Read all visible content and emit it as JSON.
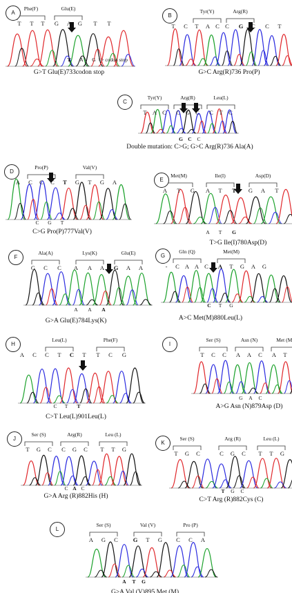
{
  "colors": {
    "A": "#1aa12a",
    "C": "#2a2adf",
    "G": "#111111",
    "T": "#e0262a"
  },
  "panels": [
    {
      "id": "A",
      "amino_acids": [
        "Phe(F)",
        "Glu(E)"
      ],
      "bases": [
        "T",
        "T",
        "T",
        "G",
        "A",
        "G",
        "T",
        "T"
      ],
      "bold_bases": [],
      "mutant_bases": [
        "T",
        "A",
        "G"
      ],
      "mutant_bold": [
        0
      ],
      "extra": "=> codon stop",
      "arrows": 1,
      "caption": "G>T Glu(E)733codon stop"
    },
    {
      "id": "B",
      "amino_acids": [
        "Tyr(Y)",
        "Arg(R)"
      ],
      "bases": [
        "T",
        "C",
        "T",
        "A",
        "C",
        "C",
        "G",
        "C",
        "C",
        "T"
      ],
      "bold_bases": [
        6
      ],
      "mutant_bases": [],
      "mutant_bold": [],
      "extra": "",
      "arrows": 1,
      "caption": "G>C Arg(R)736 Pro(P)"
    },
    {
      "id": "C",
      "amino_acids": [
        "Tyr(Y)",
        "Arg(R)",
        "Leu(L)"
      ],
      "bases": [
        "T",
        "A",
        "C",
        "C",
        "G",
        "C",
        "C",
        "T",
        "C"
      ],
      "bold_bases": [],
      "mutant_bases": [
        "G",
        "C",
        "C"
      ],
      "mutant_bold": [
        0,
        1
      ],
      "extra": "",
      "arrows": 2,
      "caption": "Double mutation: C>G; G>C Arg(R)736 Ala(A)"
    },
    {
      "id": "D",
      "amino_acids": [
        "Pro(P)",
        "Val(V)"
      ],
      "bases": [
        "A",
        "C",
        "C",
        "C",
        "T",
        "G",
        "T",
        "G",
        "A"
      ],
      "bold_bases": [
        4
      ],
      "mutant_bases": [
        "C",
        "G",
        "T"
      ],
      "mutant_bold": [],
      "extra": "",
      "arrows": 1,
      "caption": "C>G Pro(P)777Val(V)"
    },
    {
      "id": "E",
      "amino_acids": [
        "Met(M)",
        "Ile(I)",
        "Asp(D)"
      ],
      "bases": [
        "A",
        "T",
        "G",
        "A",
        "T",
        "T",
        "G",
        "A",
        "T"
      ],
      "bold_bases": [
        5
      ],
      "mutant_bases": [
        "A",
        "T",
        "G"
      ],
      "mutant_bold": [
        2
      ],
      "extra": "",
      "arrows": 1,
      "caption": "T>G Ile(I)780Asp(D)"
    },
    {
      "id": "F",
      "amino_acids": [
        "Ala(A)",
        "Lys(K)",
        "Glu(E)"
      ],
      "bases": [
        "G",
        "C",
        "C",
        "A",
        "A",
        "A",
        "G",
        "A",
        "A"
      ],
      "bold_bases": [
        6
      ],
      "mutant_bases": [
        "A",
        "A",
        "A"
      ],
      "mutant_bold": [
        2
      ],
      "extra": "",
      "arrows": 1,
      "caption": "G>A Glu(E)784Lys(K)"
    },
    {
      "id": "G",
      "amino_acids": [
        "Gln (Q)",
        "Met(M)"
      ],
      "bases": [
        "-",
        "C",
        "A",
        "A",
        "C",
        "A",
        "T",
        "G",
        "A",
        "G"
      ],
      "bold_bases": [
        5
      ],
      "mutant_bases": [
        "C",
        "T",
        "G"
      ],
      "mutant_bold": [
        0
      ],
      "extra": "",
      "arrows": 1,
      "caption": "A>C Met(M)880Leu(L)"
    },
    {
      "id": "H",
      "amino_acids": [
        "Leu(L)",
        "Phe(F)"
      ],
      "bases": [
        "A",
        "C",
        "C",
        "T",
        "C",
        "T",
        "T",
        "C",
        "G"
      ],
      "bold_bases": [
        4
      ],
      "mutant_bases": [
        "C",
        "T",
        "T"
      ],
      "mutant_bold": [
        2
      ],
      "extra": "",
      "arrows": 1,
      "caption": "C>T Leu(L)901Leu(L)"
    },
    {
      "id": "I",
      "amino_acids": [
        "Ser (S)",
        "Asn (N)",
        "Met (M)"
      ],
      "bases": [
        "T",
        "C",
        "C",
        "A",
        "A",
        "C",
        "A",
        "T",
        "G"
      ],
      "bold_bases": [],
      "mutant_bases": [
        "G",
        "A",
        "C"
      ],
      "mutant_bold": [],
      "extra": "",
      "arrows": 0,
      "caption": "A>G Asn (N)879Asp (D)"
    },
    {
      "id": "J",
      "amino_acids": [
        "Ser (S)",
        "Arg(R)",
        "Leu (L)"
      ],
      "bases": [
        "T",
        "G",
        "C",
        "C",
        "G",
        "C",
        "T",
        "T",
        "G"
      ],
      "bold_bases": [],
      "mutant_bases": [
        "C",
        "A",
        "C"
      ],
      "mutant_bold": [
        1
      ],
      "extra": "",
      "arrows": 0,
      "caption": "G>A Arg (R)882His (H)"
    },
    {
      "id": "K",
      "amino_acids": [
        "Ser (S)",
        "Arg (R)",
        "Leu (L)"
      ],
      "bases": [
        "T",
        "G",
        "C",
        "C",
        "G",
        "C",
        "T",
        "T",
        "G"
      ],
      "bold_bases": [],
      "mutant_bases": [
        "T",
        "G",
        "C"
      ],
      "mutant_bold": [
        0
      ],
      "extra": "",
      "arrows": 0,
      "caption": "C>T Arg (R)882Cys (C)"
    },
    {
      "id": "L",
      "amino_acids": [
        "Ser (S)",
        "Val (V)",
        "Pro (P)"
      ],
      "bases": [
        "A",
        "G",
        "C",
        "G",
        "T",
        "G",
        "C",
        "C",
        "A"
      ],
      "bold_bases": [
        3
      ],
      "mutant_bases": [
        "A",
        "T",
        "G"
      ],
      "mutant_bold": [
        0,
        1,
        2
      ],
      "extra": "",
      "arrows": 0,
      "caption": "G>A Val (V)895 Met (M)"
    }
  ]
}
